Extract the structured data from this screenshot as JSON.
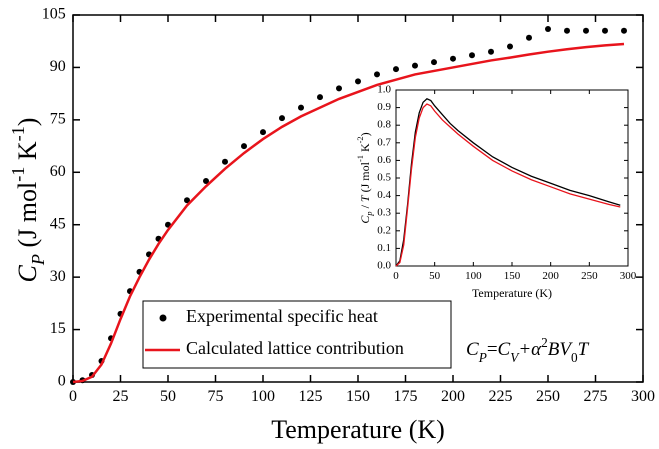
{
  "chart_data": [
    {
      "type": "line",
      "xlabel": "Temperature (K)",
      "ylabel_parts": [
        "C",
        "P",
        " (J mol",
        "-1",
        " K",
        "-1",
        ")"
      ],
      "xlim": [
        0,
        300
      ],
      "xticks": [
        0,
        25,
        50,
        75,
        100,
        125,
        150,
        175,
        200,
        225,
        250,
        275,
        300
      ],
      "ylim": [
        0,
        105
      ],
      "yticks": [
        0,
        15,
        30,
        45,
        60,
        75,
        90,
        105
      ],
      "x": [
        0,
        5,
        10,
        15,
        20,
        25,
        30,
        35,
        40,
        45,
        50,
        60,
        70,
        80,
        90,
        100,
        110,
        120,
        130,
        140,
        150,
        160,
        170,
        180,
        190,
        200,
        210,
        220,
        230,
        240,
        250,
        260,
        270,
        280,
        290
      ],
      "series": [
        {
          "name": "Experimental specific heat",
          "color": "#000000",
          "marker": "dot",
          "values": [
            0,
            0.5,
            2,
            6,
            12.5,
            19.5,
            26,
            31.5,
            36.5,
            41,
            45,
            52,
            57.5,
            63,
            67.5,
            71.5,
            75.5,
            78.5,
            81.5,
            84,
            86,
            88,
            89.5,
            90.5,
            91.5,
            92.5,
            93.5,
            94.5,
            96,
            98.5,
            101,
            100.5,
            100.5,
            100.5,
            100.5
          ]
        },
        {
          "name": "Calculated lattice contribution",
          "color": "#e8141c",
          "marker": "line",
          "values": [
            0,
            0.3,
            1.5,
            5,
            11,
            18,
            24.5,
            30,
            35,
            39.5,
            43.5,
            50.5,
            56,
            61,
            65.5,
            69.5,
            73,
            76,
            78.5,
            81,
            83,
            85,
            86.5,
            88,
            89,
            90,
            91,
            92,
            92.8,
            93.7,
            94.5,
            95.2,
            95.8,
            96.3,
            96.7
          ]
        }
      ],
      "legend_formula_parts": [
        "C",
        "P",
        "=",
        "C",
        "V",
        "+α",
        "2",
        "BV",
        "0",
        "T"
      ]
    },
    {
      "type": "line",
      "xlabel": "Temperature (K)",
      "ylabel_parts": [
        "C",
        "p",
        " / ",
        "T",
        " (J mol",
        "-1",
        " K",
        "-2",
        ")"
      ],
      "xlim": [
        0,
        300
      ],
      "xticks": [
        0,
        50,
        100,
        150,
        200,
        250,
        300
      ],
      "ylim": [
        0,
        1
      ],
      "yticks": [
        {
          "value": 0,
          "label": "0.0"
        },
        0.1,
        0.2,
        0.3,
        0.4,
        0.5,
        0.6,
        0.7,
        0.8,
        0.9,
        {
          "value": 1,
          "label": "1.0"
        }
      ],
      "x": [
        0,
        5,
        10,
        15,
        20,
        25,
        30,
        35,
        40,
        45,
        50,
        60,
        70,
        80,
        100,
        125,
        150,
        175,
        200,
        225,
        250,
        275,
        290
      ],
      "series": [
        {
          "color": "#000000",
          "values": [
            0,
            0.03,
            0.15,
            0.35,
            0.58,
            0.76,
            0.87,
            0.93,
            0.95,
            0.94,
            0.91,
            0.86,
            0.81,
            0.77,
            0.7,
            0.62,
            0.56,
            0.51,
            0.47,
            0.43,
            0.4,
            0.365,
            0.345
          ]
        },
        {
          "color": "#e8141c",
          "values": [
            0,
            0.02,
            0.12,
            0.33,
            0.55,
            0.73,
            0.84,
            0.9,
            0.92,
            0.91,
            0.88,
            0.83,
            0.79,
            0.75,
            0.68,
            0.6,
            0.54,
            0.49,
            0.45,
            0.41,
            0.38,
            0.35,
            0.335
          ]
        }
      ]
    }
  ]
}
